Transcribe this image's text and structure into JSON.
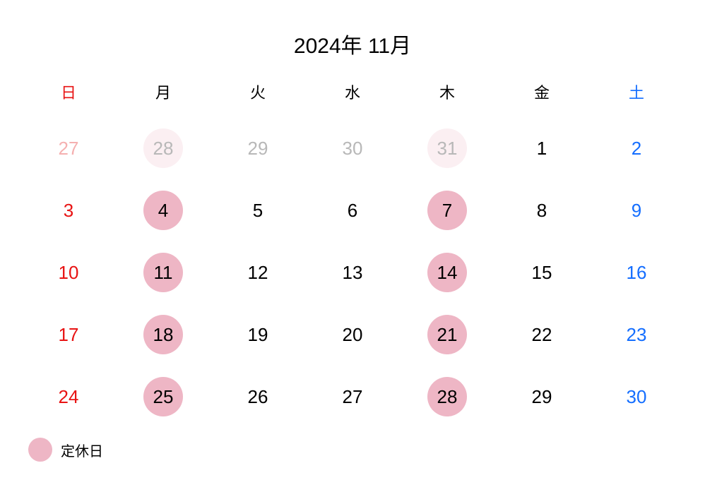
{
  "title": "2024年 11月",
  "colors": {
    "sunday": "#e81313",
    "saturday": "#146eff",
    "weekday": "#000000",
    "prev_sunday": "#f5b0b0",
    "prev_weekday": "#b8b8b8",
    "prev_saturday": "#a9c5f5",
    "closed_bg": "#eeb6c5",
    "closed_bg_faded": "#fbeff2",
    "background": "#ffffff"
  },
  "weekday_labels": [
    "日",
    "月",
    "火",
    "水",
    "木",
    "金",
    "土"
  ],
  "legend": {
    "dot_color": "#eeb6c5",
    "label": "定休日"
  },
  "cells": [
    {
      "n": "27",
      "prev": true,
      "col": 0,
      "closed": false
    },
    {
      "n": "28",
      "prev": true,
      "col": 1,
      "closed": true
    },
    {
      "n": "29",
      "prev": true,
      "col": 2,
      "closed": false
    },
    {
      "n": "30",
      "prev": true,
      "col": 3,
      "closed": false
    },
    {
      "n": "31",
      "prev": true,
      "col": 4,
      "closed": true
    },
    {
      "n": "1",
      "prev": false,
      "col": 5,
      "closed": false
    },
    {
      "n": "2",
      "prev": false,
      "col": 6,
      "closed": false
    },
    {
      "n": "3",
      "prev": false,
      "col": 0,
      "closed": false
    },
    {
      "n": "4",
      "prev": false,
      "col": 1,
      "closed": true
    },
    {
      "n": "5",
      "prev": false,
      "col": 2,
      "closed": false
    },
    {
      "n": "6",
      "prev": false,
      "col": 3,
      "closed": false
    },
    {
      "n": "7",
      "prev": false,
      "col": 4,
      "closed": true
    },
    {
      "n": "8",
      "prev": false,
      "col": 5,
      "closed": false
    },
    {
      "n": "9",
      "prev": false,
      "col": 6,
      "closed": false
    },
    {
      "n": "10",
      "prev": false,
      "col": 0,
      "closed": false
    },
    {
      "n": "11",
      "prev": false,
      "col": 1,
      "closed": true
    },
    {
      "n": "12",
      "prev": false,
      "col": 2,
      "closed": false
    },
    {
      "n": "13",
      "prev": false,
      "col": 3,
      "closed": false
    },
    {
      "n": "14",
      "prev": false,
      "col": 4,
      "closed": true
    },
    {
      "n": "15",
      "prev": false,
      "col": 5,
      "closed": false
    },
    {
      "n": "16",
      "prev": false,
      "col": 6,
      "closed": false
    },
    {
      "n": "17",
      "prev": false,
      "col": 0,
      "closed": false
    },
    {
      "n": "18",
      "prev": false,
      "col": 1,
      "closed": true
    },
    {
      "n": "19",
      "prev": false,
      "col": 2,
      "closed": false
    },
    {
      "n": "20",
      "prev": false,
      "col": 3,
      "closed": false
    },
    {
      "n": "21",
      "prev": false,
      "col": 4,
      "closed": true
    },
    {
      "n": "22",
      "prev": false,
      "col": 5,
      "closed": false
    },
    {
      "n": "23",
      "prev": false,
      "col": 6,
      "closed": false
    },
    {
      "n": "24",
      "prev": false,
      "col": 0,
      "closed": false
    },
    {
      "n": "25",
      "prev": false,
      "col": 1,
      "closed": true
    },
    {
      "n": "26",
      "prev": false,
      "col": 2,
      "closed": false
    },
    {
      "n": "27",
      "prev": false,
      "col": 3,
      "closed": false
    },
    {
      "n": "28",
      "prev": false,
      "col": 4,
      "closed": true
    },
    {
      "n": "29",
      "prev": false,
      "col": 5,
      "closed": false
    },
    {
      "n": "30",
      "prev": false,
      "col": 6,
      "closed": false
    }
  ]
}
